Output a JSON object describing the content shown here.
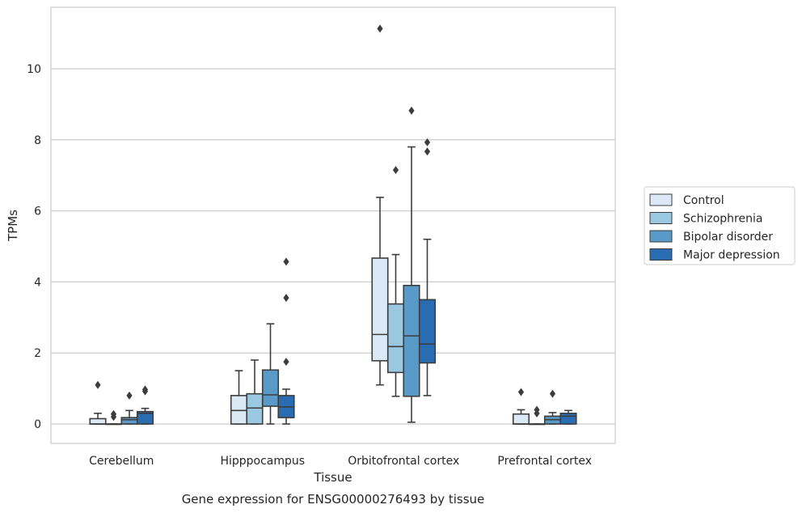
{
  "chart_data": {
    "type": "box",
    "title": "",
    "caption": "Gene expression for ENSG00000276493 by tissue",
    "xlabel": "Tissue",
    "ylabel": "TPMs",
    "ylim": [
      -0.55,
      11.8
    ],
    "yticks": [
      0,
      2,
      4,
      6,
      8,
      10
    ],
    "grid": "horizontal",
    "legend_position": "right",
    "categories": [
      "Cerebellum",
      "Hipppocampus",
      "Orbitofrontal cortex",
      "Prefrontal cortex"
    ],
    "series": [
      {
        "name": "Control",
        "color": "#dbe9f6",
        "boxes": [
          {
            "q1": 0.0,
            "median": 0.0,
            "q3": 0.15,
            "whisker_low": 0.0,
            "whisker_high": 0.3,
            "outliers": [
              1.1
            ]
          },
          {
            "q1": 0.0,
            "median": 0.38,
            "q3": 0.8,
            "whisker_low": 0.0,
            "whisker_high": 1.5,
            "outliers": []
          },
          {
            "q1": 1.78,
            "median": 2.52,
            "q3": 4.67,
            "whisker_low": 1.1,
            "whisker_high": 6.38,
            "outliers": [
              11.13
            ]
          },
          {
            "q1": 0.0,
            "median": 0.0,
            "q3": 0.28,
            "whisker_low": 0.0,
            "whisker_high": 0.4,
            "outliers": [
              0.9
            ]
          }
        ]
      },
      {
        "name": "Schizophrenia",
        "color": "#9ac8e0",
        "boxes": [
          {
            "q1": 0.0,
            "median": 0.0,
            "q3": 0.0,
            "whisker_low": 0.0,
            "whisker_high": 0.0,
            "outliers": [
              0.2,
              0.28
            ]
          },
          {
            "q1": 0.0,
            "median": 0.45,
            "q3": 0.85,
            "whisker_low": 0.0,
            "whisker_high": 1.8,
            "outliers": []
          },
          {
            "q1": 1.45,
            "median": 2.18,
            "q3": 3.38,
            "whisker_low": 0.78,
            "whisker_high": 4.77,
            "outliers": [
              7.15
            ]
          },
          {
            "q1": 0.0,
            "median": 0.0,
            "q3": 0.0,
            "whisker_low": 0.0,
            "whisker_high": 0.0,
            "outliers": [
              0.3,
              0.4
            ]
          }
        ]
      },
      {
        "name": "Bipolar disorder",
        "color": "#5a9ac8",
        "boxes": [
          {
            "q1": 0.0,
            "median": 0.12,
            "q3": 0.18,
            "whisker_low": 0.0,
            "whisker_high": 0.38,
            "outliers": [
              0.8
            ]
          },
          {
            "q1": 0.5,
            "median": 0.82,
            "q3": 1.52,
            "whisker_low": 0.0,
            "whisker_high": 2.82,
            "outliers": []
          },
          {
            "q1": 0.78,
            "median": 2.48,
            "q3": 3.9,
            "whisker_low": 0.05,
            "whisker_high": 7.8,
            "outliers": [
              8.82
            ]
          },
          {
            "q1": 0.0,
            "median": 0.12,
            "q3": 0.22,
            "whisker_low": 0.0,
            "whisker_high": 0.32,
            "outliers": [
              0.85
            ]
          }
        ]
      },
      {
        "name": "Major depression",
        "color": "#2a6cb2",
        "boxes": [
          {
            "q1": 0.0,
            "median": 0.3,
            "q3": 0.35,
            "whisker_low": 0.0,
            "whisker_high": 0.44,
            "outliers": [
              0.92,
              0.97
            ]
          },
          {
            "q1": 0.18,
            "median": 0.48,
            "q3": 0.8,
            "whisker_low": 0.0,
            "whisker_high": 0.98,
            "outliers": [
              1.75,
              3.55,
              4.57
            ]
          },
          {
            "q1": 1.72,
            "median": 2.25,
            "q3": 3.5,
            "whisker_low": 0.8,
            "whisker_high": 5.2,
            "outliers": [
              7.67,
              7.93
            ]
          },
          {
            "q1": 0.0,
            "median": 0.22,
            "q3": 0.3,
            "whisker_low": 0.0,
            "whisker_high": 0.38,
            "outliers": []
          }
        ]
      }
    ]
  }
}
